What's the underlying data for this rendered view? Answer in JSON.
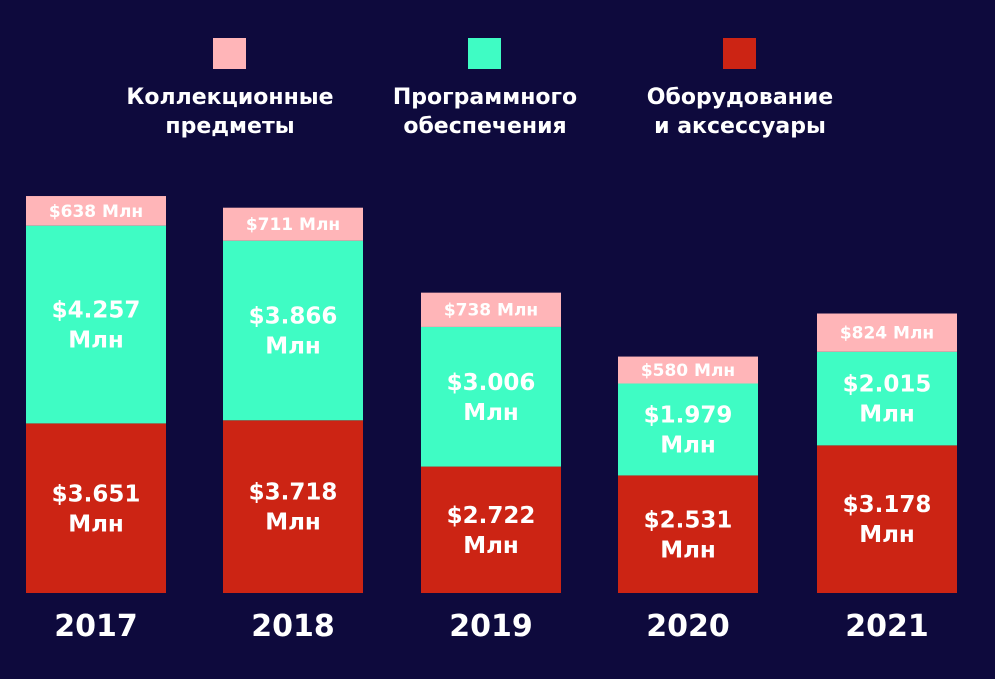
{
  "chart_data": {
    "type": "bar",
    "stacked": true,
    "categories": [
      "2017",
      "2018",
      "2019",
      "2020",
      "2021"
    ],
    "series": [
      {
        "name": "Оборудование и аксессуары",
        "legend_lines": [
          "Оборудование",
          "и аксессуары"
        ],
        "color": "#cc2414",
        "values": [
          3651,
          3718,
          2722,
          2531,
          3178
        ],
        "labels": [
          [
            "$3.651",
            "Млн"
          ],
          [
            "$3.718",
            "Млн"
          ],
          [
            "$2.722",
            "Млн"
          ],
          [
            "$2.531",
            "Млн"
          ],
          [
            "$3.178",
            "Млн"
          ]
        ]
      },
      {
        "name": "Программного обеспечения",
        "legend_lines": [
          "Программного",
          "обеспечения"
        ],
        "color": "#3ffcc4",
        "values": [
          4257,
          3866,
          3006,
          1979,
          2015
        ],
        "labels": [
          [
            "$4.257",
            "Млн"
          ],
          [
            "$3.866",
            "Млн"
          ],
          [
            "$3.006",
            "Млн"
          ],
          [
            "$1.979",
            "Млн"
          ],
          [
            "$2.015",
            "Млн"
          ]
        ]
      },
      {
        "name": "Коллекционные предметы",
        "legend_lines": [
          "Коллекционные",
          "предметы"
        ],
        "color": "#ffb5b8",
        "values": [
          638,
          711,
          738,
          580,
          824
        ],
        "labels": [
          [
            "$638 Млн"
          ],
          [
            "$711 Млн"
          ],
          [
            "$738 Млн"
          ],
          [
            "$580 Млн"
          ],
          [
            "$824 Млн"
          ]
        ]
      }
    ],
    "legend_order": [
      2,
      1,
      0
    ],
    "legend_position": "top",
    "unit": "Млн",
    "grid": false,
    "axes_visible": false
  }
}
